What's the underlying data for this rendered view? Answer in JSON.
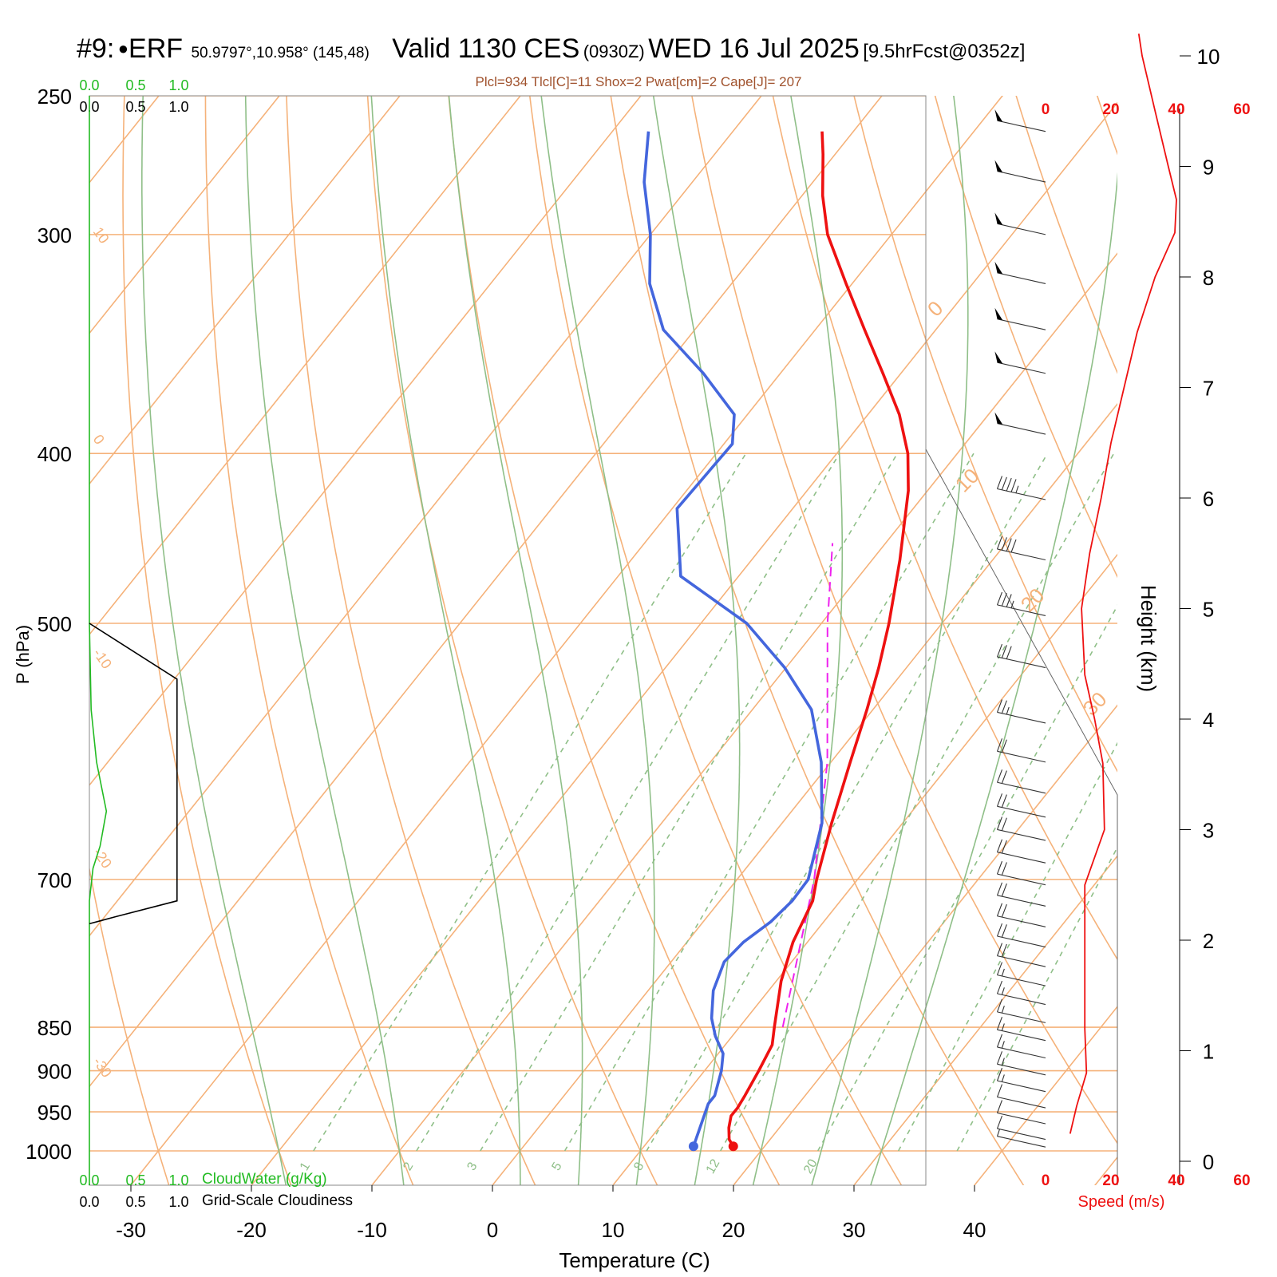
{
  "header": {
    "station_id": "#9:",
    "station_name": "ERF",
    "coords": "50.9797°,10.958° (145,48)",
    "valid_prefix": "Valid 1130 CES",
    "valid_z": "(0930Z)",
    "valid_date": "WED 16 Jul 2025",
    "forecast": "[9.5hrFcst@0352z]",
    "indices": "Plcl=934 Tlcl[C]=11 Shox=2 Pwat[cm]=2 Cape[J]= 207"
  },
  "colors": {
    "temperature": "#ee1111",
    "dewpoint": "#4466dd",
    "parcel": "#ee22ee",
    "isotherm": "#f5b27a",
    "dry_adiabat": "#f5b27a",
    "moist_adiabat": "#8fbf88",
    "mixing_ratio": "#8fbf88",
    "cloudwater": "#22bb22",
    "cloudiness": "#000000",
    "indices_text": "#a0522d",
    "wind_speed": "#ee1111"
  },
  "chart_data": {
    "type": "skew-t",
    "xlabel": "Temperature (C)",
    "ylabel": "P (hPa)",
    "x_ticks": [
      -30,
      -20,
      -10,
      0,
      10,
      20,
      30,
      40
    ],
    "p_ticks": [
      250,
      300,
      400,
      500,
      700,
      850,
      900,
      950,
      1000
    ],
    "p_range": [
      250,
      1050
    ],
    "temperature_profile": [
      {
        "p": 994,
        "t": 17.4
      },
      {
        "p": 985,
        "t": 16.6
      },
      {
        "p": 970,
        "t": 15.8
      },
      {
        "p": 955,
        "t": 15.2
      },
      {
        "p": 945,
        "t": 15.2
      },
      {
        "p": 930,
        "t": 15.0
      },
      {
        "p": 900,
        "t": 14.5
      },
      {
        "p": 870,
        "t": 13.9
      },
      {
        "p": 850,
        "t": 12.9
      },
      {
        "p": 800,
        "t": 10.4
      },
      {
        "p": 760,
        "t": 8.8
      },
      {
        "p": 720,
        "t": 7.7
      },
      {
        "p": 700,
        "t": 6.6
      },
      {
        "p": 650,
        "t": 4.1
      },
      {
        "p": 600,
        "t": 1.6
      },
      {
        "p": 560,
        "t": -0.5
      },
      {
        "p": 530,
        "t": -2.3
      },
      {
        "p": 500,
        "t": -4.4
      },
      {
        "p": 460,
        "t": -7.7
      },
      {
        "p": 420,
        "t": -11.6
      },
      {
        "p": 400,
        "t": -14.1
      },
      {
        "p": 380,
        "t": -17.4
      },
      {
        "p": 360,
        "t": -21.5
      },
      {
        "p": 340,
        "t": -25.9
      },
      {
        "p": 320,
        "t": -30.5
      },
      {
        "p": 300,
        "t": -35.3
      },
      {
        "p": 285,
        "t": -38.3
      },
      {
        "p": 270,
        "t": -41.0
      },
      {
        "p": 262,
        "t": -42.6
      }
    ],
    "dewpoint_profile": [
      {
        "p": 994,
        "t": 14.1
      },
      {
        "p": 970,
        "t": 13.4
      },
      {
        "p": 940,
        "t": 12.5
      },
      {
        "p": 930,
        "t": 12.5
      },
      {
        "p": 900,
        "t": 11.4
      },
      {
        "p": 880,
        "t": 10.4
      },
      {
        "p": 860,
        "t": 8.6
      },
      {
        "p": 840,
        "t": 7.1
      },
      {
        "p": 810,
        "t": 5.4
      },
      {
        "p": 780,
        "t": 4.4
      },
      {
        "p": 760,
        "t": 4.7
      },
      {
        "p": 740,
        "t": 5.6
      },
      {
        "p": 720,
        "t": 6.0
      },
      {
        "p": 700,
        "t": 5.9
      },
      {
        "p": 650,
        "t": 3.3
      },
      {
        "p": 600,
        "t": -0.8
      },
      {
        "p": 560,
        "t": -5.1
      },
      {
        "p": 530,
        "t": -10.1
      },
      {
        "p": 500,
        "t": -16.2
      },
      {
        "p": 470,
        "t": -24.8
      },
      {
        "p": 430,
        "t": -29.6
      },
      {
        "p": 395,
        "t": -29.3
      },
      {
        "p": 380,
        "t": -31.1
      },
      {
        "p": 360,
        "t": -36.4
      },
      {
        "p": 340,
        "t": -42.6
      },
      {
        "p": 320,
        "t": -46.8
      },
      {
        "p": 300,
        "t": -50.0
      },
      {
        "p": 280,
        "t": -54.0
      },
      {
        "p": 262,
        "t": -57.0
      }
    ],
    "parcel_profile": [
      {
        "p": 850,
        "t": 13.6
      },
      {
        "p": 700,
        "t": 6.4
      },
      {
        "p": 600,
        "t": -0.3
      },
      {
        "p": 500,
        "t": -9.5
      },
      {
        "p": 450,
        "t": -14.4
      }
    ],
    "surface_temperature": {
      "p": 994,
      "t": 17.4
    },
    "surface_dewpoint": {
      "p": 994,
      "t": 14.1
    },
    "isotherm_labels": [
      0,
      10,
      20,
      30,
      -10,
      -20,
      -30,
      10
    ],
    "moist_adiabats_c": [
      -20,
      -10,
      0,
      5,
      10,
      15,
      20,
      25,
      30
    ],
    "mixing_ratio_labels": [
      "1",
      "2",
      "3",
      "5",
      "8",
      "12",
      "20"
    ],
    "wind_barbs": [
      {
        "p": 262,
        "spd": 52
      },
      {
        "p": 280,
        "spd": 50
      },
      {
        "p": 300,
        "spd": 50
      },
      {
        "p": 320,
        "spd": 50
      },
      {
        "p": 340,
        "spd": 51
      },
      {
        "p": 360,
        "spd": 51
      },
      {
        "p": 390,
        "spd": 50
      },
      {
        "p": 425,
        "spd": 48
      },
      {
        "p": 460,
        "spd": 40
      },
      {
        "p": 495,
        "spd": 35
      },
      {
        "p": 530,
        "spd": 30
      },
      {
        "p": 570,
        "spd": 25
      },
      {
        "p": 600,
        "spd": 23
      },
      {
        "p": 625,
        "spd": 21
      },
      {
        "p": 645,
        "spd": 20
      },
      {
        "p": 665,
        "spd": 20
      },
      {
        "p": 685,
        "spd": 20
      },
      {
        "p": 705,
        "spd": 20
      },
      {
        "p": 725,
        "spd": 20
      },
      {
        "p": 745,
        "spd": 20
      },
      {
        "p": 765,
        "spd": 20
      },
      {
        "p": 785,
        "spd": 20
      },
      {
        "p": 805,
        "spd": 19
      },
      {
        "p": 825,
        "spd": 19
      },
      {
        "p": 845,
        "spd": 18
      },
      {
        "p": 865,
        "spd": 17
      },
      {
        "p": 885,
        "spd": 16
      },
      {
        "p": 905,
        "spd": 15
      },
      {
        "p": 925,
        "spd": 15
      },
      {
        "p": 945,
        "spd": 14
      },
      {
        "p": 965,
        "spd": 12
      },
      {
        "p": 985,
        "spd": 10
      },
      {
        "p": 995,
        "spd": 8
      }
    ],
    "wind_speed_profile": [
      {
        "z": 0.25,
        "spd": 7.5
      },
      {
        "z": 0.5,
        "spd": 9.5
      },
      {
        "z": 0.8,
        "spd": 12.5
      },
      {
        "z": 1.2,
        "spd": 12.0
      },
      {
        "z": 2.0,
        "spd": 12.0
      },
      {
        "z": 2.5,
        "spd": 12.0
      },
      {
        "z": 3.0,
        "spd": 18.0
      },
      {
        "z": 3.6,
        "spd": 17.5
      },
      {
        "z": 4.0,
        "spd": 15.0
      },
      {
        "z": 4.4,
        "spd": 12.0
      },
      {
        "z": 5.0,
        "spd": 11.0
      },
      {
        "z": 5.5,
        "spd": 13.5
      },
      {
        "z": 6.0,
        "spd": 17.0
      },
      {
        "z": 6.5,
        "spd": 20.0
      },
      {
        "z": 7.0,
        "spd": 24.0
      },
      {
        "z": 7.5,
        "spd": 28.0
      },
      {
        "z": 8.0,
        "spd": 33.5
      },
      {
        "z": 8.4,
        "spd": 39.5
      },
      {
        "z": 8.7,
        "spd": 40.0
      },
      {
        "z": 9.0,
        "spd": 37.5
      },
      {
        "z": 9.5,
        "spd": 33.5
      },
      {
        "z": 10.0,
        "spd": 29.5
      },
      {
        "z": 10.2,
        "spd": 28.5
      }
    ],
    "speed_axis": {
      "label": "Speed (m/s)",
      "ticks": [
        0,
        20,
        40,
        60
      ]
    },
    "height_axis": {
      "label": "Height (km)",
      "ticks": [
        0,
        1,
        2,
        3,
        4,
        5,
        6,
        7,
        8,
        9,
        10
      ]
    },
    "cloudiness_profile": [
      {
        "p": 500,
        "v": 0.0
      },
      {
        "p": 538,
        "v": 0.98
      },
      {
        "p": 720,
        "v": 0.98
      },
      {
        "p": 735,
        "v": 0.3
      },
      {
        "p": 742,
        "v": 0.0
      }
    ],
    "cloudwater_profile": [
      {
        "p": 500,
        "v": 0.0
      },
      {
        "p": 560,
        "v": 0.02
      },
      {
        "p": 600,
        "v": 0.08
      },
      {
        "p": 640,
        "v": 0.19
      },
      {
        "p": 670,
        "v": 0.12
      },
      {
        "p": 690,
        "v": 0.04
      },
      {
        "p": 720,
        "v": 0.0
      }
    ],
    "cloud_scales": {
      "cloudwater_label": "CloudWater (g/Kg)",
      "cloudiness_label": "Grid-Scale Cloudiness",
      "ticks": [
        "0.0",
        "0.5",
        "1.0"
      ]
    }
  }
}
